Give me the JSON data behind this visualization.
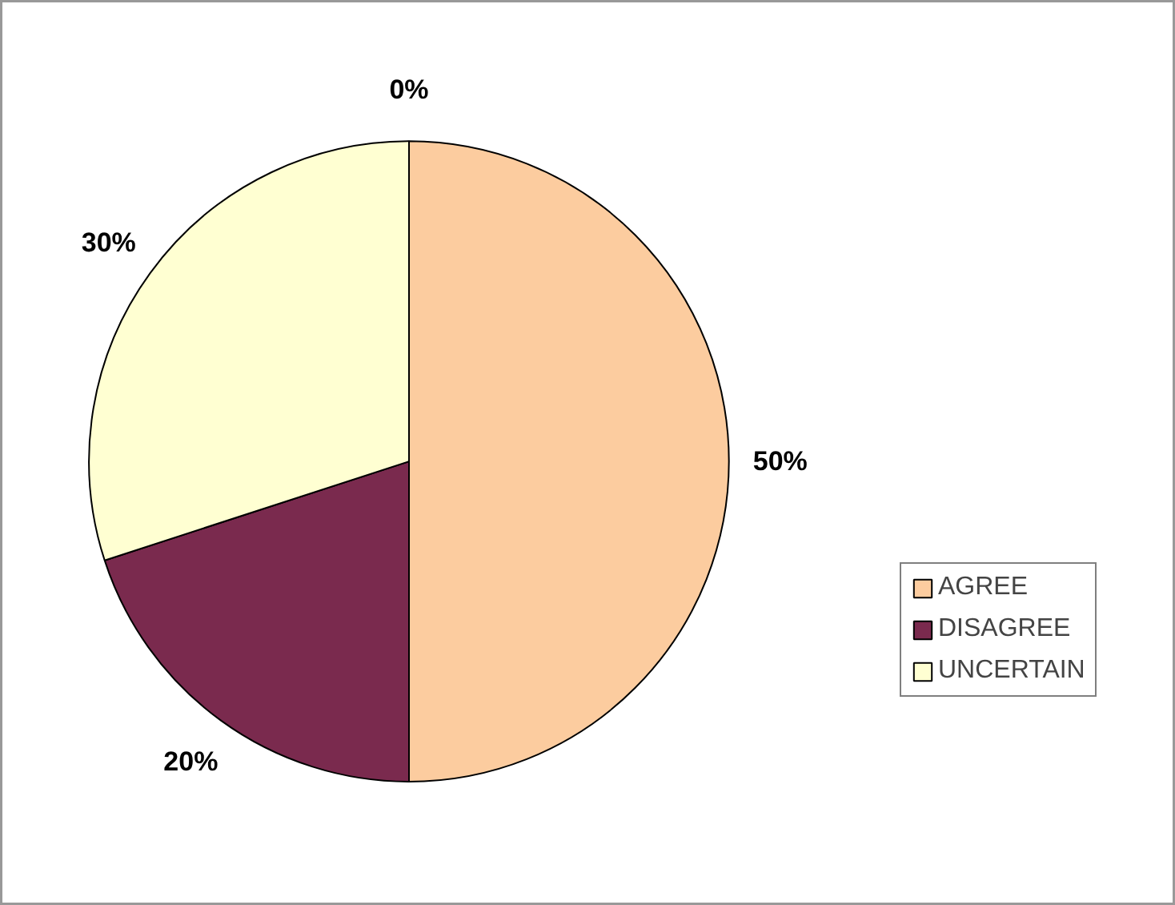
{
  "chart_data": {
    "type": "pie",
    "categories": [
      "AGREE",
      "DISAGREE",
      "UNCERTAIN",
      null
    ],
    "values": [
      50,
      20,
      30,
      0
    ],
    "colors": [
      "#fccc9f",
      "#7a2a4e",
      "#ffffd2",
      "#c0c0c0"
    ],
    "value_labels": [
      "50%",
      "20%",
      "30%",
      "0%"
    ],
    "legend": "right"
  }
}
